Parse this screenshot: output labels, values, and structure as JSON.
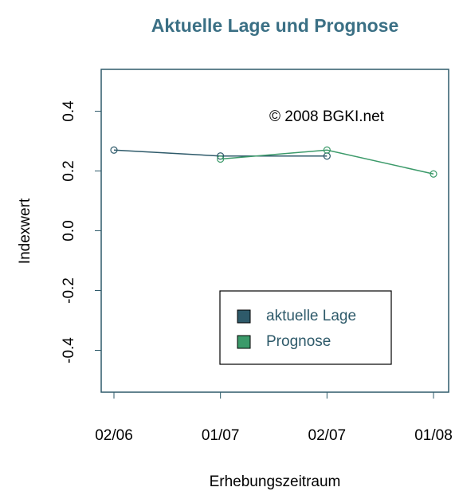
{
  "chart_data": {
    "type": "line",
    "title": "Aktuelle Lage und Prognose",
    "x_label": "Erhebungszeitraum",
    "y_label": "Indexwert",
    "annotation": "© 2008 BGKI.net",
    "categories": [
      "02/06",
      "01/07",
      "02/07",
      "01/08"
    ],
    "series": [
      {
        "name": "aktuelle Lage",
        "color": "#2e5a6a",
        "values": [
          0.27,
          0.25,
          0.25,
          null
        ]
      },
      {
        "name": "Prognose",
        "color": "#3c9a6a",
        "values": [
          null,
          0.24,
          0.27,
          0.19
        ]
      }
    ],
    "ylim": [
      -0.54,
      0.54
    ],
    "yticks": [
      -0.4,
      -0.2,
      {
        "value": 0,
        "label": "0.0"
      },
      0.2,
      0.4
    ],
    "legend": "lower right"
  }
}
